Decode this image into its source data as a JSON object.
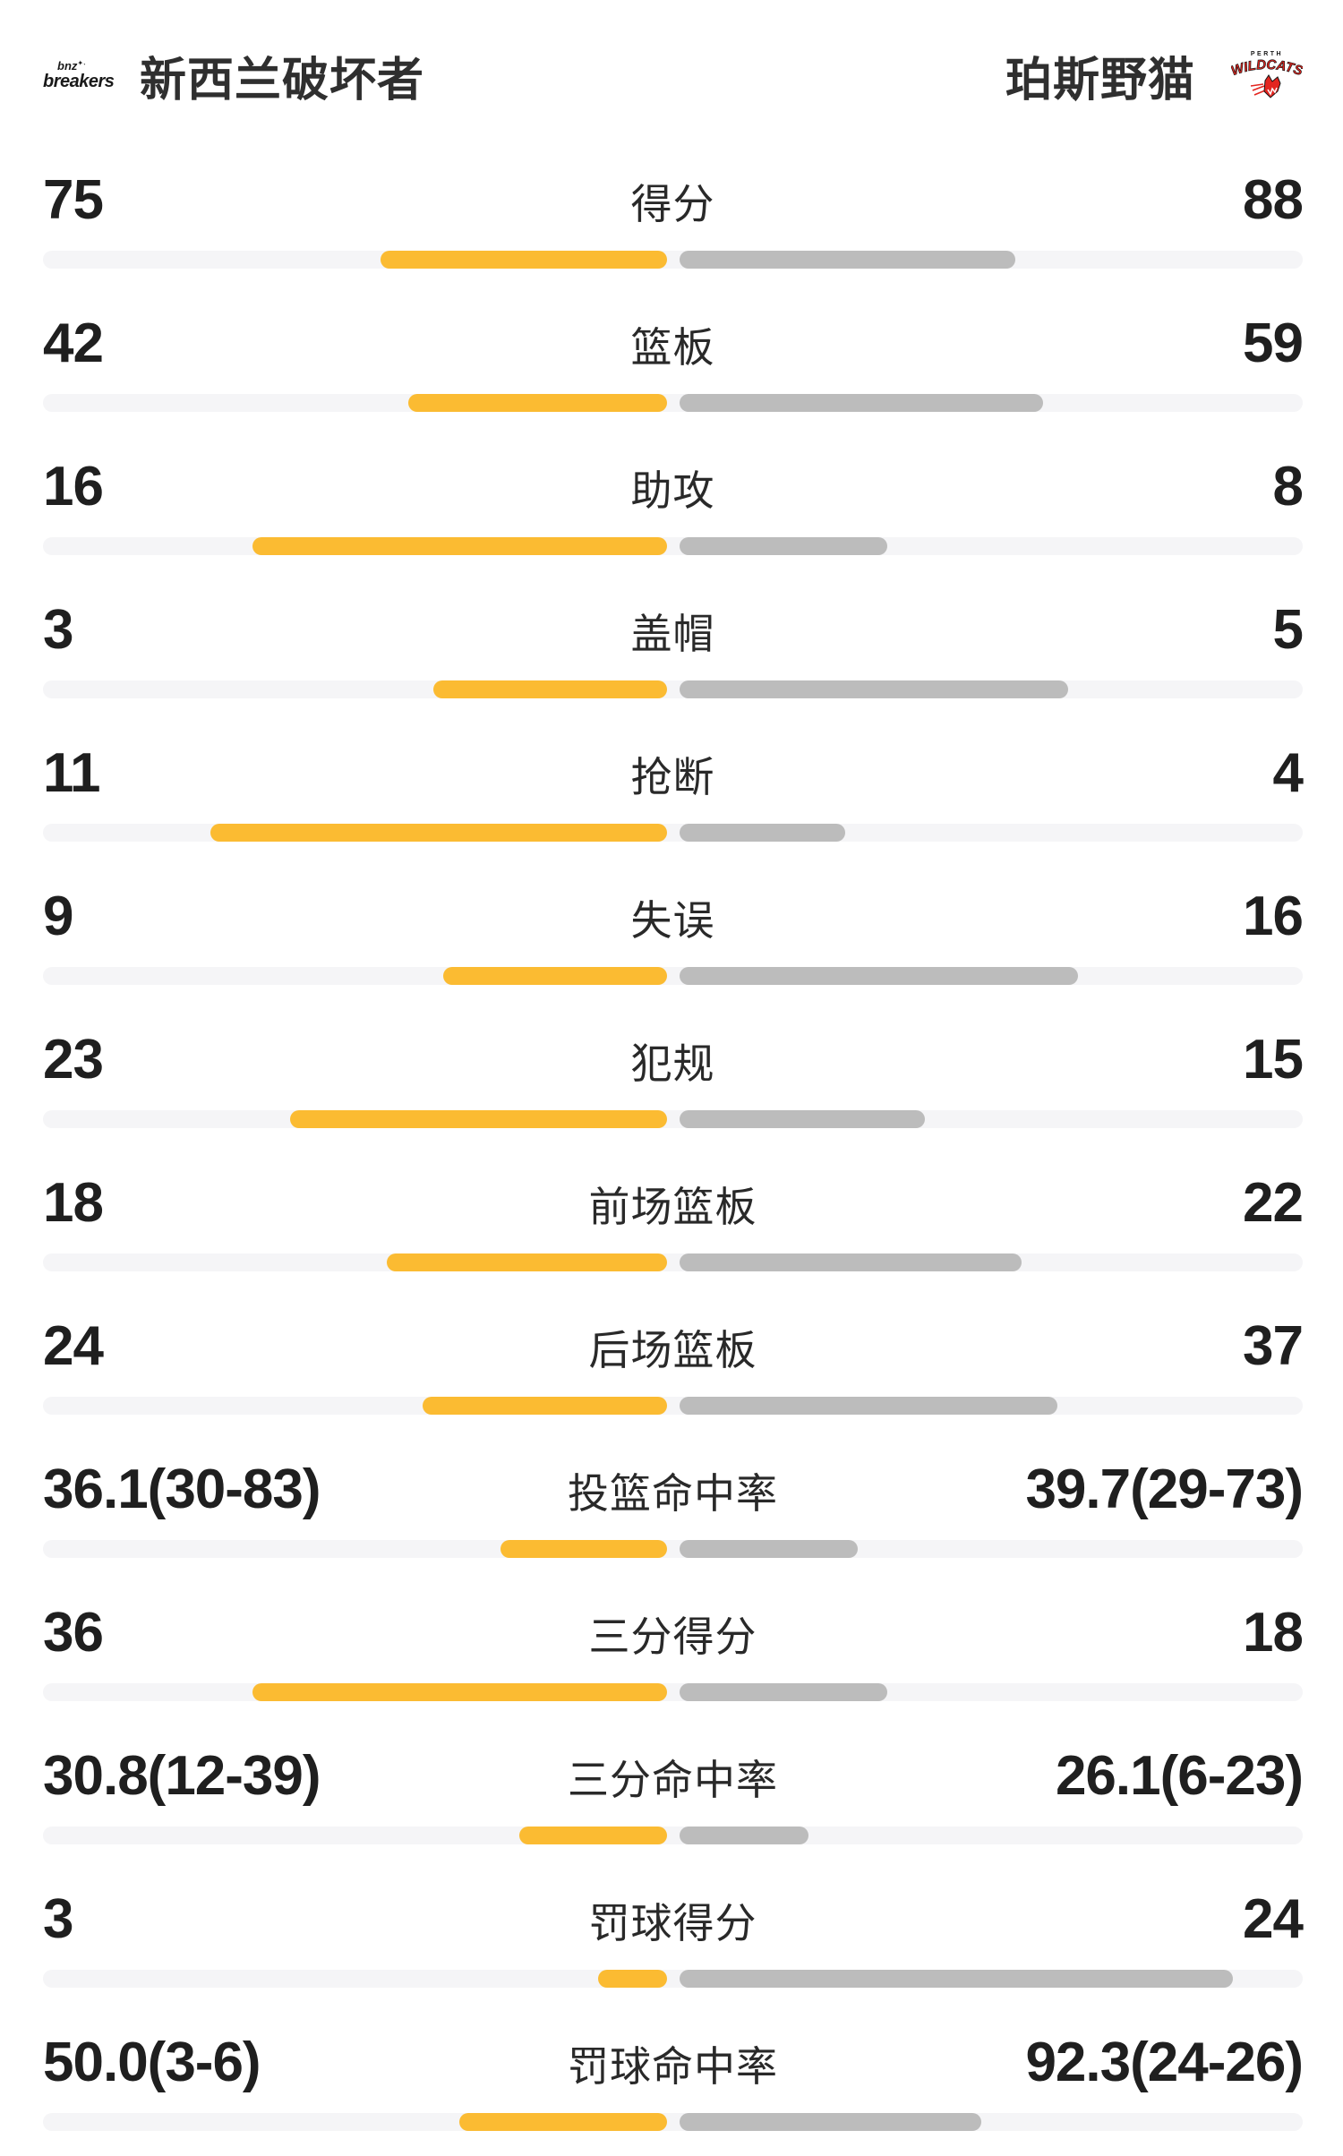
{
  "header": {
    "home_team": {
      "name": "新西兰破坏者",
      "logo_small": "bnz",
      "logo_main": "breakers"
    },
    "away_team": {
      "name": "珀斯野猫",
      "logo_top": "PERTH",
      "logo_main": "WILDCATS"
    }
  },
  "colors": {
    "home_bar": "#FBBB32",
    "away_bar": "#BCBCBC",
    "bar_track": "#F5F5F7",
    "value_text": "#1F1F1F",
    "title_text": "#2F2F2F",
    "wildcats_red": "#E3251F",
    "logo_black": "#1A1A1A"
  },
  "rows": [
    {
      "label": "得分",
      "left": "75",
      "right": "88",
      "left_bar": 320,
      "right_bar": 375
    },
    {
      "label": "篮板",
      "left": "42",
      "right": "59",
      "left_bar": 289,
      "right_bar": 406
    },
    {
      "label": "助攻",
      "left": "16",
      "right": "8",
      "left_bar": 463,
      "right_bar": 232
    },
    {
      "label": "盖帽",
      "left": "3",
      "right": "5",
      "left_bar": 261,
      "right_bar": 434
    },
    {
      "label": "抢断",
      "left": "11",
      "right": "4",
      "left_bar": 510,
      "right_bar": 185
    },
    {
      "label": "失误",
      "left": "9",
      "right": "16",
      "left_bar": 250,
      "right_bar": 445
    },
    {
      "label": "犯规",
      "left": "23",
      "right": "15",
      "left_bar": 421,
      "right_bar": 274
    },
    {
      "label": "前场篮板",
      "left": "18",
      "right": "22",
      "left_bar": 313,
      "right_bar": 382
    },
    {
      "label": "后场篮板",
      "left": "24",
      "right": "37",
      "left_bar": 273,
      "right_bar": 422
    },
    {
      "label": "投篮命中率",
      "left": "36.1(30-83)",
      "right": "39.7(29-73)",
      "left_bar": 186,
      "right_bar": 199
    },
    {
      "label": "三分得分",
      "left": "36",
      "right": "18",
      "left_bar": 463,
      "right_bar": 232
    },
    {
      "label": "三分命中率",
      "left": "30.8(12-39)",
      "right": "26.1(6-23)",
      "left_bar": 165,
      "right_bar": 144
    },
    {
      "label": "罚球得分",
      "left": "3",
      "right": "24",
      "left_bar": 77,
      "right_bar": 618
    },
    {
      "label": "罚球命中率",
      "left": "50.0(3-6)",
      "right": "92.3(24-26)",
      "left_bar": 232,
      "right_bar": 337
    }
  ],
  "chart_data": {
    "type": "bar",
    "orientation": "horizontal-paired",
    "title": "新西兰破坏者 vs 珀斯野猫",
    "categories": [
      "得分",
      "篮板",
      "助攻",
      "盖帽",
      "抢断",
      "失误",
      "犯规",
      "前场篮板",
      "后场篮板",
      "投篮命中率",
      "三分得分",
      "三分命中率",
      "罚球得分",
      "罚球命中率"
    ],
    "series": [
      {
        "name": "新西兰破坏者",
        "color": "#FBBB32",
        "values": [
          75,
          42,
          16,
          3,
          11,
          9,
          23,
          18,
          24,
          36.1,
          36,
          30.8,
          3,
          50.0
        ],
        "display": [
          "75",
          "42",
          "16",
          "3",
          "11",
          "9",
          "23",
          "18",
          "24",
          "36.1(30-83)",
          "36",
          "30.8(12-39)",
          "3",
          "50.0(3-6)"
        ]
      },
      {
        "name": "珀斯野猫",
        "color": "#BCBCBC",
        "values": [
          88,
          59,
          8,
          5,
          4,
          16,
          15,
          22,
          37,
          39.7,
          18,
          26.1,
          24,
          92.3
        ],
        "display": [
          "88",
          "59",
          "8",
          "5",
          "4",
          "16",
          "15",
          "22",
          "37",
          "39.7(29-73)",
          "18",
          "26.1(6-23)",
          "24",
          "92.3(24-26)"
        ]
      }
    ],
    "legend_position": "header",
    "grid": false,
    "bars_anchor": "center-out"
  }
}
